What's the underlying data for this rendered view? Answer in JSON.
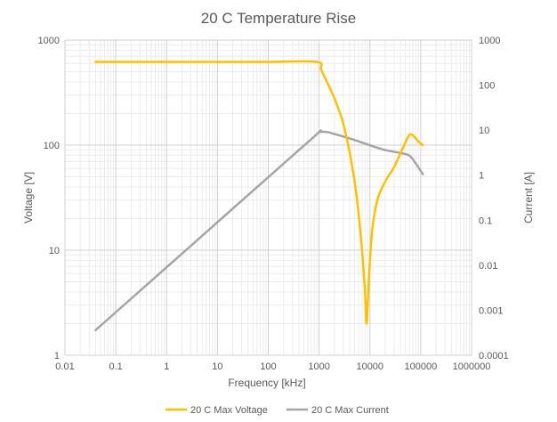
{
  "chart_data": {
    "type": "line",
    "title": "20 C Temperature Rise",
    "xlabel": "Frequency [kHz]",
    "ylabel": "Voltage [V]",
    "y2label": "Current [A]",
    "x_scale": "log",
    "y_scale": "log",
    "y2_scale": "log",
    "xlim": [
      0.01,
      1000000
    ],
    "ylim": [
      1,
      1000
    ],
    "y2lim": [
      0.0001,
      1000
    ],
    "x_ticks": [
      "0.01",
      "0.1",
      "1",
      "10",
      "100",
      "1000",
      "10000",
      "100000",
      "1000000"
    ],
    "y_ticks": [
      "1",
      "10",
      "100",
      "1000"
    ],
    "y2_ticks": [
      "0.0001",
      "0.001",
      "0.01",
      "0.1",
      "1",
      "10",
      "100",
      "1000"
    ],
    "grid": true,
    "legend_position": "bottom",
    "series": [
      {
        "name": "20 C Max Voltage",
        "axis": "left",
        "color": "#FFC000",
        "x": [
          0.04,
          0.1,
          1,
          10,
          100,
          900,
          1100,
          1500,
          2000,
          2500,
          3000,
          4000,
          5000,
          6000,
          7000,
          8000,
          8600,
          9500,
          11000,
          14000,
          20000,
          30000,
          45000,
          60000,
          75000,
          90000,
          110000
        ],
        "y": [
          620,
          620,
          620,
          620,
          620,
          620,
          520,
          380,
          280,
          210,
          160,
          85,
          45,
          22,
          10,
          4,
          2,
          5,
          15,
          30,
          45,
          62,
          95,
          125,
          120,
          108,
          100
        ]
      },
      {
        "name": "20 C Max Current",
        "axis": "right",
        "color": "#A5A5A5",
        "x": [
          0.04,
          0.1,
          1,
          10,
          100,
          900,
          1000,
          1200,
          1500,
          2000,
          3000,
          5000,
          10000,
          20000,
          40000,
          60000,
          80000,
          110000
        ],
        "y": [
          0.00036,
          0.0009,
          0.009,
          0.09,
          0.9,
          8.1,
          9,
          9.2,
          9,
          8.2,
          7.2,
          6,
          4.6,
          3.6,
          3.1,
          2.7,
          1.8,
          1.05
        ]
      }
    ]
  }
}
